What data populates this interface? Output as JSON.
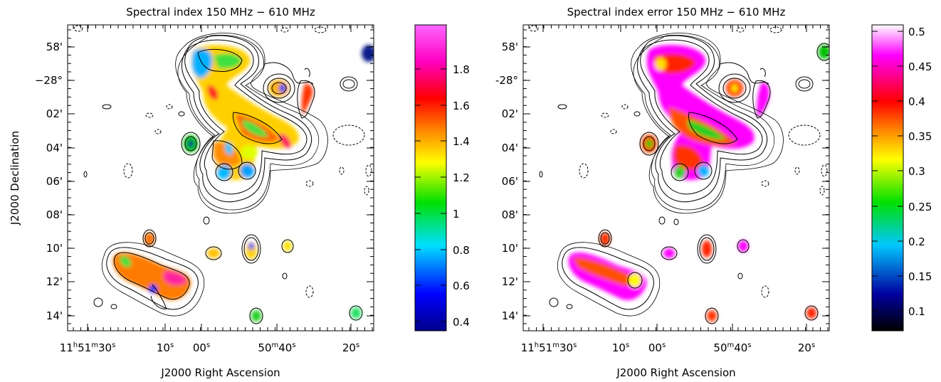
{
  "figure": {
    "panels": [
      {
        "title": "Spectral index 150 MHz − 610 MHz",
        "xlabel": "J2000 Right Ascension",
        "ylabel": "J2000 Declination",
        "xticks": [
          {
            "label": "11h51m30s",
            "parts": [
              "11",
              "h",
              "51",
              "m",
              "30",
              "s"
            ]
          },
          {
            "label": "10s",
            "parts": [
              "10",
              "s"
            ]
          },
          {
            "label": "00s",
            "parts": [
              "00",
              "s"
            ]
          },
          {
            "label": "50m40s",
            "parts": [
              "50",
              "m",
              "40",
              "s"
            ]
          },
          {
            "label": "20s",
            "parts": [
              "20",
              "s"
            ]
          }
        ],
        "yticks": [
          {
            "label": "58'",
            "parts": [
              "58'"
            ]
          },
          {
            "label": "−28°",
            "parts": [
              "−28°"
            ]
          },
          {
            "label": "02'",
            "parts": [
              "02'"
            ]
          },
          {
            "label": "04'",
            "parts": [
              "04'"
            ]
          },
          {
            "label": "06'",
            "parts": [
              "06'"
            ]
          },
          {
            "label": "08'",
            "parts": [
              "08'"
            ]
          },
          {
            "label": "10'",
            "parts": [
              "10'"
            ]
          },
          {
            "label": "12'",
            "parts": [
              "12'"
            ]
          },
          {
            "label": "14'",
            "parts": [
              "14'"
            ]
          }
        ],
        "colorbar": {
          "ticks": [
            "0.4",
            "0.6",
            "0.8",
            "1",
            "1.2",
            "1.4",
            "1.6",
            "1.8"
          ],
          "range": [
            0.3,
            2.0
          ],
          "colormap": "rainbow (navy-blue-cyan-green-yellow-orange-red-magenta-pink)"
        }
      },
      {
        "title": "Spectral index error 150 MHz − 610 MHz",
        "xlabel": "J2000 Right Ascension",
        "ylabel": "",
        "xticks": [
          {
            "label": "11h51m30s",
            "parts": [
              "11",
              "h",
              "51",
              "m",
              "30",
              "s"
            ]
          },
          {
            "label": "10s",
            "parts": [
              "10",
              "s"
            ]
          },
          {
            "label": "00s",
            "parts": [
              "00",
              "s"
            ]
          },
          {
            "label": "50m40s",
            "parts": [
              "50",
              "m",
              "40",
              "s"
            ]
          },
          {
            "label": "20s",
            "parts": [
              "20",
              "s"
            ]
          }
        ],
        "yticks": [
          {
            "label": "58'",
            "parts": [
              "58'"
            ]
          },
          {
            "label": "-28°",
            "parts": [
              "-28°"
            ]
          },
          {
            "label": "02'",
            "parts": [
              "02'"
            ]
          },
          {
            "label": "04'",
            "parts": [
              "04'"
            ]
          },
          {
            "label": "06'",
            "parts": [
              "06'"
            ]
          },
          {
            "label": "08'",
            "parts": [
              "08'"
            ]
          },
          {
            "label": "10'",
            "parts": [
              "10'"
            ]
          },
          {
            "label": "12'",
            "parts": [
              "12'"
            ]
          },
          {
            "label": "14'",
            "parts": [
              "14'"
            ]
          }
        ],
        "colorbar": {
          "ticks": [
            "0.1",
            "0.15",
            "0.2",
            "0.25",
            "0.3",
            "0.35",
            "0.4",
            "0.45",
            "0.5"
          ],
          "range": [
            0.07,
            0.52
          ],
          "colormap": "black-blue-cyan-green-yellow-orange-red-magenta-white"
        }
      }
    ]
  },
  "chart_data": [
    {
      "type": "heatmap",
      "title": "Spectral index 150 MHz − 610 MHz",
      "xlabel": "J2000 Right Ascension",
      "ylabel": "J2000 Declination",
      "x_ticks": [
        "11h51m30s",
        "10s",
        "00s",
        "50m40s",
        "20s"
      ],
      "y_ticks": [
        "58'",
        "−28°",
        "02'",
        "04'",
        "06'",
        "08'",
        "10'",
        "12'",
        "14'"
      ],
      "colorbar_range": [
        0.3,
        2.0
      ],
      "colorbar_ticks": [
        0.4,
        0.6,
        0.8,
        1,
        1.2,
        1.4,
        1.6,
        1.8
      ],
      "contours": "black total-intensity contours, dashed negative levels",
      "grid": false
    },
    {
      "type": "heatmap",
      "title": "Spectral index error 150 MHz − 610 MHz",
      "xlabel": "J2000 Right Ascension",
      "ylabel": "",
      "x_ticks": [
        "11h51m30s",
        "10s",
        "00s",
        "50m40s",
        "20s"
      ],
      "y_ticks": [
        "58'",
        "-28°",
        "02'",
        "04'",
        "06'",
        "08'",
        "10'",
        "12'",
        "14'"
      ],
      "colorbar_range": [
        0.07,
        0.52
      ],
      "colorbar_ticks": [
        0.1,
        0.15,
        0.2,
        0.25,
        0.3,
        0.35,
        0.4,
        0.45,
        0.5
      ],
      "contours": "black total-intensity contours, dashed negative levels",
      "grid": false
    }
  ]
}
